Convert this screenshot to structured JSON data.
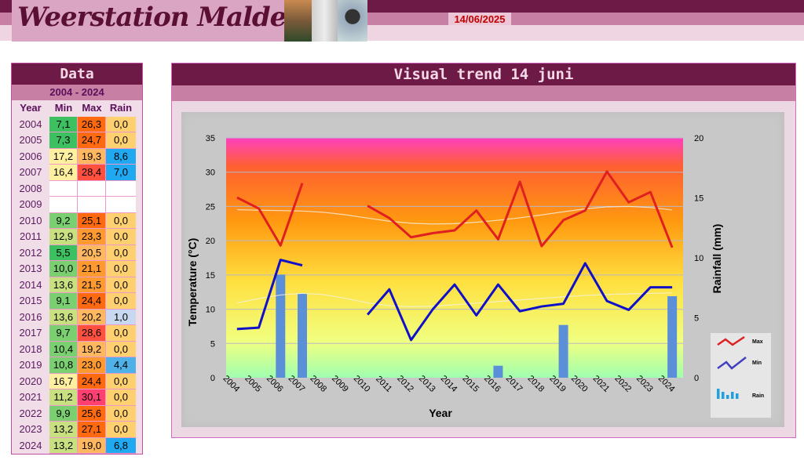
{
  "header": {
    "title": "Weerstation Malderen",
    "date": "14/06/2025"
  },
  "table": {
    "title": "Data",
    "period": "2004 - 2024",
    "columns": [
      "Year",
      "Min",
      "Max",
      "Rain"
    ],
    "rows": [
      [
        "2004",
        "7,1",
        "26,3",
        "0,0"
      ],
      [
        "2005",
        "7,3",
        "24,7",
        "0,0"
      ],
      [
        "2006",
        "17,2",
        "19,3",
        "8,6"
      ],
      [
        "2007",
        "16,4",
        "28,4",
        "7,0"
      ],
      [
        "2008",
        "",
        "",
        ""
      ],
      [
        "2009",
        "",
        "",
        ""
      ],
      [
        "2010",
        "9,2",
        "25,1",
        "0,0"
      ],
      [
        "2011",
        "12,9",
        "23,3",
        "0,0"
      ],
      [
        "2012",
        "5,5",
        "20,5",
        "0,0"
      ],
      [
        "2013",
        "10,0",
        "21,1",
        "0,0"
      ],
      [
        "2014",
        "13,6",
        "21,5",
        "0,0"
      ],
      [
        "2015",
        "9,1",
        "24,4",
        "0,0"
      ],
      [
        "2016",
        "13,6",
        "20,2",
        "1,0"
      ],
      [
        "2017",
        "9,7",
        "28,6",
        "0,0"
      ],
      [
        "2018",
        "10,4",
        "19,2",
        "0,0"
      ],
      [
        "2019",
        "10,8",
        "23,0",
        "4,4"
      ],
      [
        "2020",
        "16,7",
        "24,4",
        "0,0"
      ],
      [
        "2021",
        "11,2",
        "30,1",
        "0,0"
      ],
      [
        "2022",
        "9,9",
        "25,6",
        "0,0"
      ],
      [
        "2023",
        "13,2",
        "27,1",
        "0,0"
      ],
      [
        "2024",
        "13,2",
        "19,0",
        "6,8"
      ]
    ]
  },
  "panel": {
    "title": "Visual trend 14 juni"
  },
  "chart_data": {
    "type": "line",
    "xlabel": "Year",
    "ylabel": "Temperature (°C)",
    "y2label": "Rainfall (mm)",
    "ylim": [
      0,
      35
    ],
    "y2lim": [
      0,
      20
    ],
    "yticks": [
      0,
      5,
      10,
      15,
      20,
      25,
      30,
      35
    ],
    "y2ticks": [
      0,
      5,
      10,
      15,
      20
    ],
    "categories": [
      "2004",
      "2005",
      "2006",
      "2007",
      "2008",
      "2009",
      "2010",
      "2011",
      "2012",
      "2013",
      "2014",
      "2015",
      "2016",
      "2017",
      "2018",
      "2019",
      "2020",
      "2021",
      "2022",
      "2023",
      "2024"
    ],
    "series": [
      {
        "name": "Max",
        "type": "line",
        "axis": "left",
        "color": "#e02020",
        "values": [
          26.3,
          24.7,
          19.3,
          28.4,
          null,
          null,
          25.1,
          23.3,
          20.5,
          21.1,
          21.5,
          24.4,
          20.2,
          28.6,
          19.2,
          23.0,
          24.4,
          30.1,
          25.6,
          27.1,
          19.0
        ]
      },
      {
        "name": "Min",
        "type": "line",
        "axis": "left",
        "color": "#1010c8",
        "values": [
          7.1,
          7.3,
          17.2,
          16.4,
          null,
          null,
          9.2,
          12.9,
          5.5,
          10.0,
          13.6,
          9.1,
          13.6,
          9.7,
          10.4,
          10.8,
          16.7,
          11.2,
          9.9,
          13.2,
          13.2
        ]
      },
      {
        "name": "Rain",
        "type": "bar",
        "axis": "right",
        "color": "#5b8fd8",
        "values": [
          0,
          0,
          8.6,
          7.0,
          null,
          null,
          0,
          0,
          0,
          0,
          0,
          0,
          1.0,
          0,
          0,
          4.4,
          0,
          0,
          0,
          0,
          6.8
        ]
      }
    ],
    "legend": "right",
    "grid": true
  }
}
